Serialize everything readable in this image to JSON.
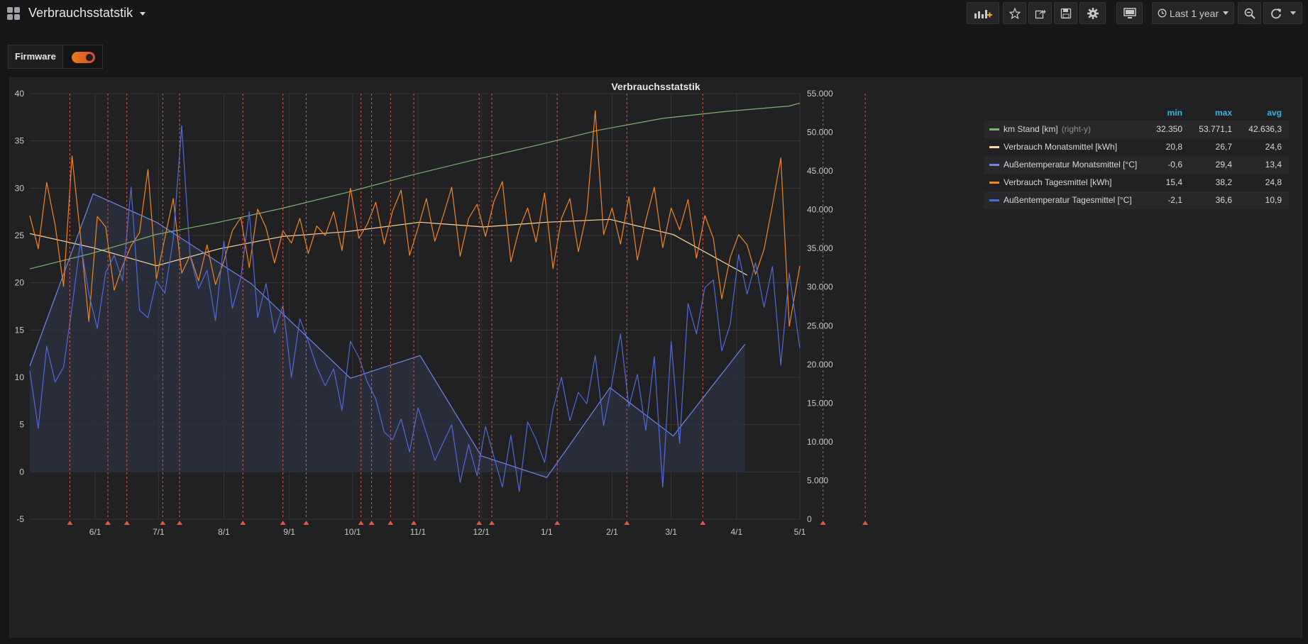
{
  "header": {
    "title": "Verbrauchsstatstik",
    "time_range": "Last 1 year",
    "buttons": [
      "add-panel-icon",
      "star-icon",
      "share-icon",
      "save-icon",
      "gear-icon",
      "tv-icon",
      "clock-icon",
      "zoom-out-icon",
      "refresh-icon"
    ]
  },
  "variables": {
    "firmware_label": "Firmware",
    "firmware_enabled": true
  },
  "panel": {
    "title": "Verbrauchsstatstik"
  },
  "legend": {
    "columns": [
      "min",
      "max",
      "avg"
    ],
    "items": [
      {
        "name": "km Stand [km]",
        "suffix": "(right-y)",
        "color": "#7eb26d",
        "min": "32.350",
        "max": "53.771,1",
        "avg": "42.636,3"
      },
      {
        "name": "Verbrauch Monatsmittel [kWh]",
        "suffix": "",
        "color": "#f9d9a0",
        "min": "20,8",
        "max": "26,7",
        "avg": "24,6"
      },
      {
        "name": "Außentemperatur Monatsmittel [°C]",
        "suffix": "",
        "color": "#6d87e8",
        "min": "-0,6",
        "max": "29,4",
        "avg": "13,4"
      },
      {
        "name": "Verbrauch Tagesmittel [kWh]",
        "suffix": "",
        "color": "#f2851e",
        "min": "15,4",
        "max": "38,2",
        "avg": "24,8"
      },
      {
        "name": "Außentemperatur Tagesmittel [°C]",
        "suffix": "",
        "color": "#4f6ad8",
        "min": "-2,1",
        "max": "36,6",
        "avg": "10,9"
      }
    ]
  },
  "colors": {
    "grid": "#343436",
    "annotation": "#e0584b",
    "area_fill": "#2b3140"
  },
  "chart_data": {
    "type": "line",
    "x_ticks": [
      "6/1",
      "7/1",
      "8/1",
      "9/1",
      "10/1",
      "11/1",
      "12/1",
      "1/1",
      "2/1",
      "3/1",
      "4/1",
      "5/1"
    ],
    "xlim": [
      "5/1",
      "5/1"
    ],
    "y_left": {
      "ticks": [
        "40",
        "35",
        "30",
        "25",
        "20",
        "15",
        "10",
        "5",
        "0",
        "-5"
      ],
      "range": [
        -5,
        40
      ]
    },
    "y_right": {
      "ticks": [
        "55.000",
        "50.000",
        "45.000",
        "40.000",
        "35.000",
        "30.000",
        "25.000",
        "20.000",
        "15.000",
        "10.000",
        "5.000",
        "0"
      ],
      "range": [
        0,
        55000
      ]
    },
    "grid": true,
    "legend_position": "right",
    "annotations_day": [
      19,
      37,
      46,
      63,
      71,
      101,
      120,
      131,
      157,
      162,
      171,
      182,
      213,
      219,
      250,
      283,
      319,
      376,
      396
    ],
    "series": [
      {
        "name": "km Stand [km]",
        "axis": "right",
        "color": "#7eb26d",
        "x": [
          0,
          30,
          60,
          90,
          120,
          150,
          180,
          210,
          240,
          270,
          300,
          330,
          360,
          365
        ],
        "y": [
          32350,
          34400,
          36800,
          38400,
          40200,
          42200,
          44400,
          46400,
          48300,
          50300,
          51800,
          52700,
          53400,
          53771
        ]
      },
      {
        "name": "Verbrauch Monatsmittel [kWh]",
        "axis": "left",
        "color": "#f9d9a0",
        "x": [
          0,
          30,
          60,
          90,
          120,
          150,
          185,
          215,
          245,
          275,
          305,
          340
        ],
        "y": [
          25.2,
          23.7,
          21.8,
          23.6,
          24.9,
          25.4,
          26.4,
          25.9,
          26.4,
          26.7,
          25.1,
          20.8
        ]
      },
      {
        "name": "Außentemperatur Monatsmittel [°C]",
        "axis": "left",
        "color": "#6d87e8",
        "fill": true,
        "x": [
          0,
          30,
          60,
          105,
          152,
          185,
          214,
          245,
          275,
          305,
          339
        ],
        "y": [
          11.2,
          29.4,
          26.4,
          19.9,
          9.9,
          12.3,
          1.7,
          -0.6,
          8.9,
          3.8,
          13.5
        ]
      },
      {
        "name": "Verbrauch Tagesmittel [kWh]",
        "axis": "left",
        "color": "#f2851e",
        "x": [
          0,
          4,
          8,
          12,
          16,
          20,
          24,
          28,
          32,
          36,
          40,
          44,
          48,
          52,
          56,
          60,
          64,
          68,
          72,
          76,
          80,
          84,
          88,
          92,
          96,
          100,
          104,
          108,
          112,
          116,
          120,
          124,
          128,
          132,
          136,
          140,
          144,
          148,
          152,
          156,
          160,
          164,
          168,
          172,
          176,
          180,
          184,
          188,
          192,
          196,
          200,
          204,
          208,
          212,
          216,
          220,
          224,
          228,
          232,
          236,
          240,
          244,
          248,
          252,
          256,
          260,
          264,
          268,
          272,
          276,
          280,
          284,
          288,
          292,
          296,
          300,
          304,
          308,
          312,
          316,
          320,
          324,
          328,
          332,
          336,
          340,
          344,
          348,
          352,
          356,
          360,
          365
        ],
        "y": [
          27.1,
          23.6,
          30.6,
          26.1,
          19.6,
          33.4,
          25.0,
          15.9,
          27.0,
          25.9,
          19.2,
          21.8,
          23.9,
          25.3,
          32.0,
          20.4,
          24.7,
          28.9,
          21.0,
          22.9,
          20.2,
          24.0,
          19.8,
          22.3,
          25.5,
          26.9,
          21.6,
          27.8,
          25.8,
          22.1,
          25.5,
          24.2,
          26.8,
          23.1,
          26.0,
          25.0,
          27.5,
          23.4,
          30.0,
          24.7,
          26.2,
          28.5,
          24.1,
          27.6,
          29.8,
          22.9,
          25.8,
          28.9,
          24.4,
          27.1,
          30.1,
          22.8,
          26.8,
          28.3,
          24.9,
          28.6,
          30.7,
          22.2,
          25.7,
          27.9,
          24.3,
          29.5,
          21.5,
          26.8,
          28.9,
          23.3,
          27.4,
          38.2,
          25.1,
          27.9,
          24.1,
          29.1,
          22.4,
          26.6,
          30.1,
          23.7,
          27.9,
          25.6,
          28.8,
          22.6,
          27.1,
          24.7,
          18.3,
          22.7,
          25.1,
          24.0,
          20.9,
          23.5,
          28.2,
          33.2,
          15.4,
          21.8
        ]
      },
      {
        "name": "Außentemperatur Tagesmittel [°C]",
        "axis": "left",
        "color": "#4f6ad8",
        "x": [
          0,
          4,
          8,
          12,
          16,
          20,
          24,
          28,
          32,
          36,
          40,
          44,
          48,
          52,
          56,
          60,
          64,
          68,
          72,
          76,
          80,
          84,
          88,
          92,
          96,
          100,
          104,
          108,
          112,
          116,
          120,
          124,
          128,
          132,
          136,
          140,
          144,
          148,
          152,
          156,
          160,
          164,
          168,
          172,
          176,
          180,
          184,
          188,
          192,
          196,
          200,
          204,
          208,
          212,
          216,
          220,
          224,
          228,
          232,
          236,
          240,
          244,
          248,
          252,
          256,
          260,
          264,
          268,
          272,
          276,
          280,
          284,
          288,
          292,
          296,
          300,
          304,
          308,
          312,
          316,
          320,
          324,
          328,
          332,
          336,
          340,
          344,
          348,
          352,
          356,
          360,
          365
        ],
        "y": [
          10.7,
          4.6,
          13.3,
          9.5,
          11.1,
          17.4,
          24.3,
          18.8,
          15.2,
          21.1,
          22.9,
          20.2,
          30.1,
          17.1,
          16.3,
          20.2,
          18.9,
          24.6,
          36.6,
          22.8,
          19.4,
          21.3,
          16.0,
          24.4,
          17.3,
          20.5,
          27.5,
          16.3,
          19.9,
          14.7,
          17.6,
          10.0,
          16.2,
          13.8,
          11.1,
          9.1,
          10.9,
          6.5,
          13.8,
          12.1,
          9.5,
          7.7,
          4.2,
          3.4,
          5.6,
          2.1,
          6.8,
          4.1,
          1.2,
          3.1,
          5.0,
          -1.1,
          2.9,
          -0.4,
          4.8,
          1.6,
          -1.6,
          3.9,
          -2.1,
          5.3,
          3.4,
          1.0,
          6.6,
          10.0,
          5.4,
          8.4,
          7.2,
          12.3,
          4.9,
          9.5,
          14.6,
          6.9,
          10.3,
          4.4,
          12.2,
          -1.6,
          13.8,
          3.0,
          17.8,
          14.6,
          19.5,
          20.3,
          12.8,
          15.6,
          23.0,
          18.8,
          22.1,
          17.4,
          21.7,
          11.3,
          21.0,
          13.1
        ]
      }
    ]
  }
}
